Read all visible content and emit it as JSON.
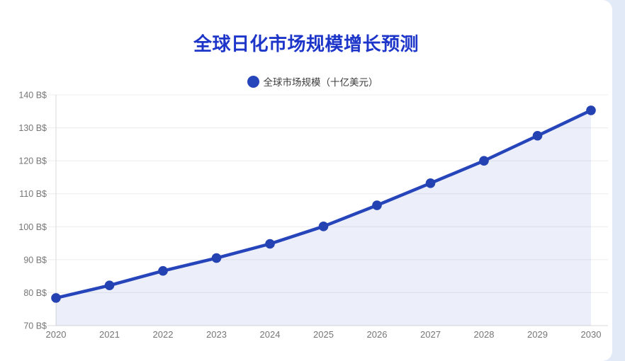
{
  "page": {
    "background_color": "#e3eaf7",
    "card_background_color": "#ffffff"
  },
  "header": {
    "title": "全球日化市场规模增长预测",
    "title_color": "#1d36c9"
  },
  "legend": {
    "label": "全球市场规模（十亿美元）",
    "marker_color": "#2745ba",
    "text_color": "#3b3b3b"
  },
  "chart_data": {
    "type": "line",
    "title": "全球日化市场规模增长预测",
    "categories": [
      "2020",
      "2021",
      "2022",
      "2023",
      "2024",
      "2025",
      "2026",
      "2027",
      "2028",
      "2029",
      "2030"
    ],
    "series": [
      {
        "name": "全球市场规模（十亿美元）",
        "values": [
          78.4,
          82.2,
          86.6,
          90.5,
          94.8,
          100.1,
          106.5,
          113.2,
          120.0,
          127.6,
          135.3
        ],
        "line_color": "#2745ba",
        "point_color": "#2442b2",
        "area_fill_rgba": "rgba(39,69,186,0.085)"
      }
    ],
    "xlabel": "",
    "ylabel": "",
    "ylim": [
      70,
      140
    ],
    "y_tick_step": 10,
    "y_tick_suffix": " B$",
    "y_tick_labels": [
      "70 B$",
      "80 B$",
      "90 B$",
      "100 B$",
      "110 B$",
      "120 B$",
      "130 B$",
      "140 B$"
    ],
    "grid": true,
    "legend_position": "top",
    "axis_text_color": "#767676",
    "grid_color": "#ececec",
    "axis_line_color": "#d9d9d9"
  }
}
